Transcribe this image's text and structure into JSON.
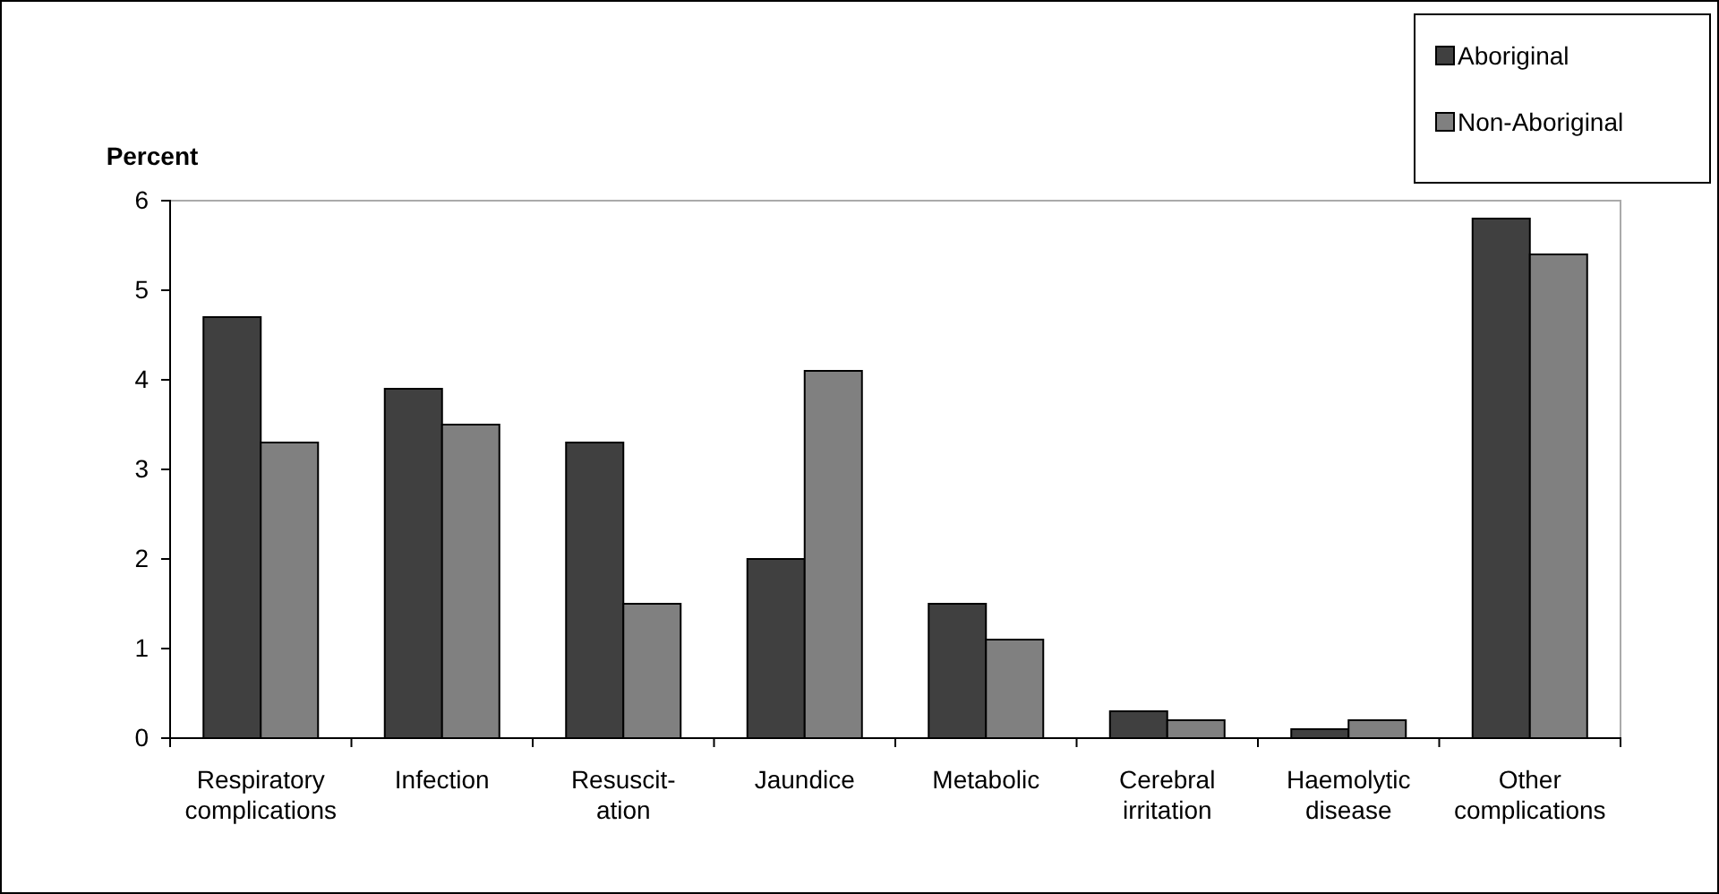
{
  "chart_data": {
    "type": "bar",
    "ylabel": "Percent",
    "categories": [
      "Respiratory\ncomplications",
      "Infection",
      "Resuscit-\nation",
      "Jaundice",
      "Metabolic",
      "Cerebral\nirritation",
      "Haemolytic\ndisease",
      "Other\ncomplications"
    ],
    "series": [
      {
        "name": "Aboriginal",
        "color": "#404040",
        "values": [
          4.7,
          3.9,
          3.3,
          2.0,
          1.5,
          0.3,
          0.1,
          5.8
        ]
      },
      {
        "name": "Non-Aboriginal",
        "color": "#808080",
        "values": [
          3.3,
          3.5,
          1.5,
          4.1,
          1.1,
          0.2,
          0.2,
          5.4
        ]
      }
    ],
    "ylim": [
      0,
      6
    ],
    "yticks": [
      0,
      1,
      2,
      3,
      4,
      5,
      6
    ],
    "grid": false,
    "legend": "top right"
  }
}
